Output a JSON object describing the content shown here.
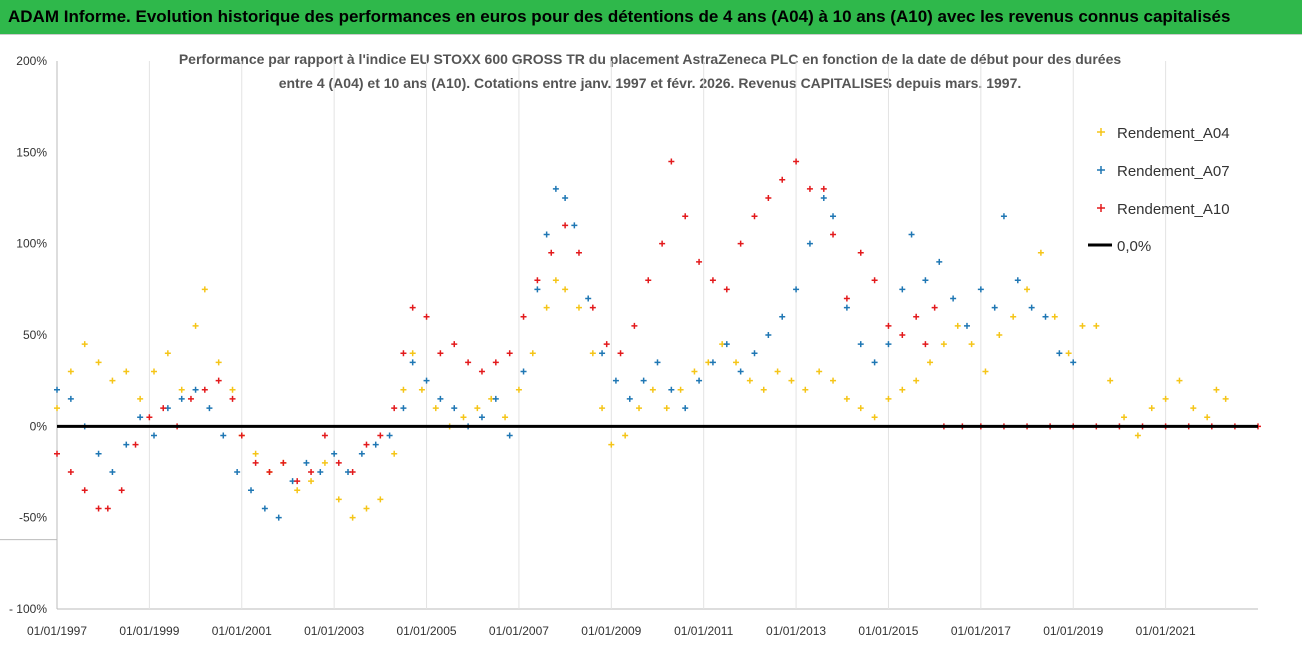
{
  "header": {
    "title": "ADAM Informe. Evolution historique des performances en euros pour des détentions de 4 ans (A04) à 10 ans (A10) avec les revenus connus capitalisés"
  },
  "chart_data": {
    "type": "scatter",
    "title_line1": "Performance par rapport à l'indice EU STOXX 600 GROSS TR  du placement AstraZeneca PLC en fonction de la date de début pour des durées",
    "title_line2": "entre 4 (A04) et 10 ans (A10). Cotations entre janv. 1997 et févr. 2026. Revenus CAPITALISES depuis mars. 1997.",
    "xlabel": "",
    "ylabel": "",
    "x_ticks": [
      "01/01/1997",
      "01/01/1999",
      "01/01/2001",
      "01/01/2003",
      "01/01/2005",
      "01/01/2007",
      "01/01/2009",
      "01/01/2011",
      "01/01/2013",
      "01/01/2015",
      "01/01/2017",
      "01/01/2019",
      "01/01/2021"
    ],
    "xlim": [
      1997.0,
      2023.0
    ],
    "ylim": [
      -100,
      200
    ],
    "y_ticks": [
      "200%",
      "150%",
      "100%",
      "50%",
      "0%",
      "-50%",
      "- 100%"
    ],
    "y_tick_values": [
      200,
      150,
      100,
      50,
      0,
      -50,
      -100
    ],
    "grid": "vertical",
    "legend_placement": "top-right",
    "series": [
      {
        "name": "Rendement_A04",
        "color": "#f5c518",
        "marker": "+",
        "points": [
          [
            1997.0,
            10
          ],
          [
            1997.3,
            30
          ],
          [
            1997.6,
            45
          ],
          [
            1997.9,
            35
          ],
          [
            1998.2,
            25
          ],
          [
            1998.5,
            30
          ],
          [
            1998.8,
            15
          ],
          [
            1999.1,
            30
          ],
          [
            1999.4,
            40
          ],
          [
            1999.7,
            20
          ],
          [
            2000.0,
            55
          ],
          [
            2000.2,
            75
          ],
          [
            2000.5,
            35
          ],
          [
            2000.8,
            20
          ],
          [
            2001.0,
            -5
          ],
          [
            2001.3,
            -15
          ],
          [
            2001.6,
            -25
          ],
          [
            2001.9,
            -20
          ],
          [
            2002.2,
            -35
          ],
          [
            2002.5,
            -30
          ],
          [
            2002.8,
            -20
          ],
          [
            2003.1,
            -40
          ],
          [
            2003.4,
            -50
          ],
          [
            2003.7,
            -45
          ],
          [
            2004.0,
            -40
          ],
          [
            2004.3,
            -15
          ],
          [
            2004.5,
            20
          ],
          [
            2004.7,
            40
          ],
          [
            2004.9,
            20
          ],
          [
            2005.2,
            10
          ],
          [
            2005.5,
            0
          ],
          [
            2005.8,
            5
          ],
          [
            2006.1,
            10
          ],
          [
            2006.4,
            15
          ],
          [
            2006.7,
            5
          ],
          [
            2007.0,
            20
          ],
          [
            2007.3,
            40
          ],
          [
            2007.6,
            65
          ],
          [
            2007.8,
            80
          ],
          [
            2008.0,
            75
          ],
          [
            2008.3,
            65
          ],
          [
            2008.6,
            40
          ],
          [
            2008.8,
            10
          ],
          [
            2009.0,
            -10
          ],
          [
            2009.3,
            -5
          ],
          [
            2009.6,
            10
          ],
          [
            2009.9,
            20
          ],
          [
            2010.2,
            10
          ],
          [
            2010.5,
            20
          ],
          [
            2010.8,
            30
          ],
          [
            2011.1,
            35
          ],
          [
            2011.4,
            45
          ],
          [
            2011.7,
            35
          ],
          [
            2012.0,
            25
          ],
          [
            2012.3,
            20
          ],
          [
            2012.6,
            30
          ],
          [
            2012.9,
            25
          ],
          [
            2013.2,
            20
          ],
          [
            2013.5,
            30
          ],
          [
            2013.8,
            25
          ],
          [
            2014.1,
            15
          ],
          [
            2014.4,
            10
          ],
          [
            2014.7,
            5
          ],
          [
            2015.0,
            15
          ],
          [
            2015.3,
            20
          ],
          [
            2015.6,
            25
          ],
          [
            2015.9,
            35
          ],
          [
            2016.2,
            45
          ],
          [
            2016.5,
            55
          ],
          [
            2016.8,
            45
          ],
          [
            2017.1,
            30
          ],
          [
            2017.4,
            50
          ],
          [
            2017.7,
            60
          ],
          [
            2018.0,
            75
          ],
          [
            2018.3,
            95
          ],
          [
            2018.6,
            60
          ],
          [
            2018.9,
            40
          ],
          [
            2019.2,
            55
          ],
          [
            2019.5,
            55
          ],
          [
            2019.8,
            25
          ],
          [
            2020.1,
            5
          ],
          [
            2020.4,
            -5
          ],
          [
            2020.7,
            10
          ],
          [
            2021.0,
            15
          ],
          [
            2021.3,
            25
          ],
          [
            2021.6,
            10
          ],
          [
            2021.9,
            5
          ],
          [
            2022.1,
            20
          ],
          [
            2022.3,
            15
          ]
        ]
      },
      {
        "name": "Rendement_A07",
        "color": "#1f77b4",
        "marker": "+",
        "points": [
          [
            1997.0,
            20
          ],
          [
            1997.3,
            15
          ],
          [
            1997.6,
            0
          ],
          [
            1997.9,
            -15
          ],
          [
            1998.2,
            -25
          ],
          [
            1998.5,
            -10
          ],
          [
            1998.8,
            5
          ],
          [
            1999.1,
            -5
          ],
          [
            1999.4,
            10
          ],
          [
            1999.7,
            15
          ],
          [
            2000.0,
            20
          ],
          [
            2000.3,
            10
          ],
          [
            2000.6,
            -5
          ],
          [
            2000.9,
            -25
          ],
          [
            2001.2,
            -35
          ],
          [
            2001.5,
            -45
          ],
          [
            2001.8,
            -50
          ],
          [
            2002.1,
            -30
          ],
          [
            2002.4,
            -20
          ],
          [
            2002.7,
            -25
          ],
          [
            2003.0,
            -15
          ],
          [
            2003.3,
            -25
          ],
          [
            2003.6,
            -15
          ],
          [
            2003.9,
            -10
          ],
          [
            2004.2,
            -5
          ],
          [
            2004.5,
            10
          ],
          [
            2004.7,
            35
          ],
          [
            2005.0,
            25
          ],
          [
            2005.3,
            15
          ],
          [
            2005.6,
            10
          ],
          [
            2005.9,
            0
          ],
          [
            2006.2,
            5
          ],
          [
            2006.5,
            15
          ],
          [
            2006.8,
            -5
          ],
          [
            2007.1,
            30
          ],
          [
            2007.4,
            75
          ],
          [
            2007.6,
            105
          ],
          [
            2007.8,
            130
          ],
          [
            2008.0,
            125
          ],
          [
            2008.2,
            110
          ],
          [
            2008.5,
            70
          ],
          [
            2008.8,
            40
          ],
          [
            2009.1,
            25
          ],
          [
            2009.4,
            15
          ],
          [
            2009.7,
            25
          ],
          [
            2010.0,
            35
          ],
          [
            2010.3,
            20
          ],
          [
            2010.6,
            10
          ],
          [
            2010.9,
            25
          ],
          [
            2011.2,
            35
          ],
          [
            2011.5,
            45
          ],
          [
            2011.8,
            30
          ],
          [
            2012.1,
            40
          ],
          [
            2012.4,
            50
          ],
          [
            2012.7,
            60
          ],
          [
            2013.0,
            75
          ],
          [
            2013.3,
            100
          ],
          [
            2013.6,
            125
          ],
          [
            2013.8,
            115
          ],
          [
            2014.1,
            65
          ],
          [
            2014.4,
            45
          ],
          [
            2014.7,
            35
          ],
          [
            2015.0,
            45
          ],
          [
            2015.3,
            75
          ],
          [
            2015.5,
            105
          ],
          [
            2015.8,
            80
          ],
          [
            2016.1,
            90
          ],
          [
            2016.4,
            70
          ],
          [
            2016.7,
            55
          ],
          [
            2017.0,
            75
          ],
          [
            2017.3,
            65
          ],
          [
            2017.5,
            115
          ],
          [
            2017.8,
            80
          ],
          [
            2018.1,
            65
          ],
          [
            2018.4,
            60
          ],
          [
            2018.7,
            40
          ],
          [
            2019.0,
            35
          ]
        ]
      },
      {
        "name": "Rendement_A10",
        "color": "#e31a1c",
        "marker": "+",
        "points": [
          [
            1997.0,
            -15
          ],
          [
            1997.3,
            -25
          ],
          [
            1997.6,
            -35
          ],
          [
            1997.9,
            -45
          ],
          [
            1998.1,
            -45
          ],
          [
            1998.4,
            -35
          ],
          [
            1998.7,
            -10
          ],
          [
            1999.0,
            5
          ],
          [
            1999.3,
            10
          ],
          [
            1999.6,
            0
          ],
          [
            1999.9,
            15
          ],
          [
            2000.2,
            20
          ],
          [
            2000.5,
            25
          ],
          [
            2000.8,
            15
          ],
          [
            2001.0,
            -5
          ],
          [
            2001.3,
            -20
          ],
          [
            2001.6,
            -25
          ],
          [
            2001.9,
            -20
          ],
          [
            2002.2,
            -30
          ],
          [
            2002.5,
            -25
          ],
          [
            2002.8,
            -5
          ],
          [
            2003.1,
            -20
          ],
          [
            2003.4,
            -25
          ],
          [
            2003.7,
            -10
          ],
          [
            2004.0,
            -5
          ],
          [
            2004.3,
            10
          ],
          [
            2004.5,
            40
          ],
          [
            2004.7,
            65
          ],
          [
            2005.0,
            60
          ],
          [
            2005.3,
            40
          ],
          [
            2005.6,
            45
          ],
          [
            2005.9,
            35
          ],
          [
            2006.2,
            30
          ],
          [
            2006.5,
            35
          ],
          [
            2006.8,
            40
          ],
          [
            2007.1,
            60
          ],
          [
            2007.4,
            80
          ],
          [
            2007.7,
            95
          ],
          [
            2008.0,
            110
          ],
          [
            2008.3,
            95
          ],
          [
            2008.6,
            65
          ],
          [
            2008.9,
            45
          ],
          [
            2009.2,
            40
          ],
          [
            2009.5,
            55
          ],
          [
            2009.8,
            80
          ],
          [
            2010.1,
            100
          ],
          [
            2010.3,
            145
          ],
          [
            2010.6,
            115
          ],
          [
            2010.9,
            90
          ],
          [
            2011.2,
            80
          ],
          [
            2011.5,
            75
          ],
          [
            2011.8,
            100
          ],
          [
            2012.1,
            115
          ],
          [
            2012.4,
            125
          ],
          [
            2012.7,
            135
          ],
          [
            2013.0,
            145
          ],
          [
            2013.3,
            130
          ],
          [
            2013.6,
            130
          ],
          [
            2013.8,
            105
          ],
          [
            2014.1,
            70
          ],
          [
            2014.4,
            95
          ],
          [
            2014.7,
            80
          ],
          [
            2015.0,
            55
          ],
          [
            2015.3,
            50
          ],
          [
            2015.6,
            60
          ],
          [
            2015.8,
            45
          ],
          [
            2016.0,
            65
          ],
          [
            2016.2,
            0
          ],
          [
            2016.6,
            0
          ],
          [
            2017.0,
            0
          ],
          [
            2017.5,
            0
          ],
          [
            2018.0,
            0
          ],
          [
            2018.5,
            0
          ],
          [
            2019.0,
            0
          ],
          [
            2019.5,
            0
          ],
          [
            2020.0,
            0
          ],
          [
            2020.5,
            0
          ],
          [
            2021.0,
            0
          ],
          [
            2021.5,
            0
          ],
          [
            2022.0,
            0
          ],
          [
            2022.5,
            0
          ],
          [
            2023.0,
            0
          ]
        ]
      },
      {
        "name": "0,0%",
        "color": "#000000",
        "marker": "line",
        "points": [
          [
            1997.0,
            0
          ],
          [
            2023.0,
            0
          ]
        ]
      }
    ]
  }
}
